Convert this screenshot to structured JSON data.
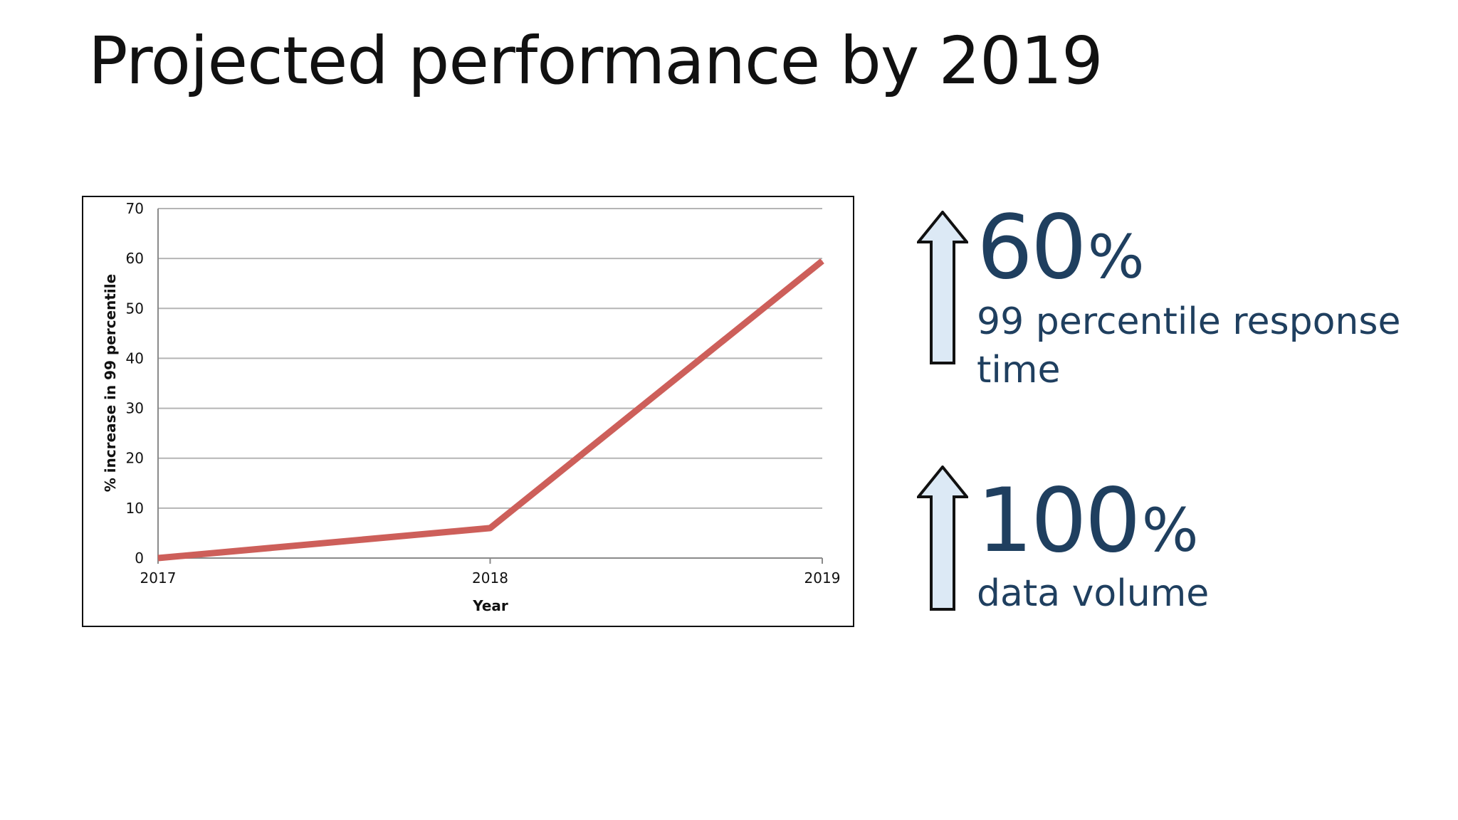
{
  "slide": {
    "title": "Projected performance by 2019",
    "text_color": "#1f3f5f",
    "arrow_fill": "#dce9f5",
    "arrow_icon": "up-arrow-icon"
  },
  "stats": [
    {
      "number": "60",
      "unit": "%",
      "label_line1": "99 percentile response",
      "label_line2": "time"
    },
    {
      "number": "100",
      "unit": "%",
      "label_line1": "data volume",
      "label_line2": ""
    }
  ],
  "chart_data": {
    "type": "line",
    "title": "",
    "xlabel": "Year",
    "ylabel": "% increase in 99 percentile",
    "categories": [
      "2017",
      "2018",
      "2019"
    ],
    "series": [
      {
        "values": [
          0,
          6,
          59.5
        ],
        "color": "#cd5f5a"
      }
    ],
    "ylim": [
      0,
      70
    ],
    "yticks": [
      0,
      10,
      20,
      30,
      40,
      50,
      60,
      70
    ],
    "grid": true,
    "legend": "none"
  }
}
